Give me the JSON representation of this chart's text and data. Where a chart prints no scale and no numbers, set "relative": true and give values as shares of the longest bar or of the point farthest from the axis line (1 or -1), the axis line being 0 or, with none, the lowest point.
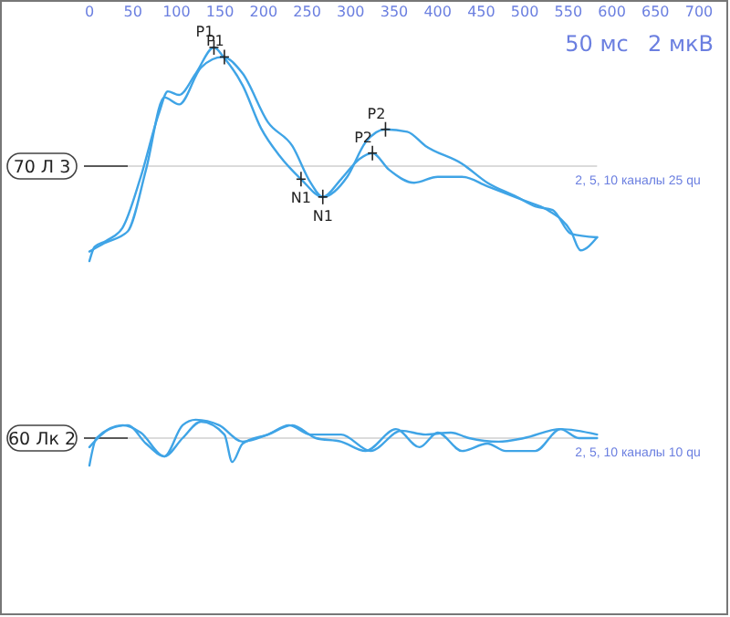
{
  "chart_data": [
    {
      "type": "line",
      "relative": true,
      "ylabel": "70 Л 3",
      "xlim": [
        0,
        700
      ],
      "xticks": [
        0,
        50,
        100,
        150,
        200,
        250,
        300,
        350,
        400,
        450,
        500,
        550,
        600,
        650,
        700
      ],
      "tick_labels": "x",
      "annotations": [
        "50 мс",
        "2 мкВ",
        "2, 5, 10 каналы 25 qu",
        {
          "text": "P1",
          "x": 143,
          "y": 1.0
        },
        {
          "text": "P1",
          "x": 155,
          "y": 0.92
        },
        {
          "text": "N1",
          "x": 243,
          "y": -0.11
        },
        {
          "text": "N1",
          "x": 268,
          "y": -0.26
        },
        {
          "text": "P2",
          "x": 325,
          "y": 0.11
        },
        {
          "text": "P2",
          "x": 340,
          "y": 0.31
        }
      ],
      "series": [
        {
          "color": "#3fa4e6",
          "x": [
            0,
            6,
            19,
            38,
            59,
            80,
            90,
            103,
            122,
            143,
            155,
            176,
            197,
            218,
            243,
            268,
            289,
            310,
            325,
            344,
            373,
            400,
            428,
            457,
            499,
            526,
            553,
            564,
            583
          ],
          "values": [
            -0.8,
            -0.68,
            -0.63,
            -0.52,
            -0.09,
            0.45,
            0.63,
            0.6,
            0.78,
            1.0,
            0.91,
            0.68,
            0.32,
            0.09,
            -0.11,
            -0.26,
            -0.11,
            0.06,
            0.11,
            -0.03,
            -0.14,
            -0.09,
            -0.09,
            -0.17,
            -0.29,
            -0.37,
            -0.55,
            -0.71,
            -0.6
          ]
        },
        {
          "color": "#3fa4e6",
          "x": [
            0,
            17,
            44,
            65,
            86,
            103,
            128,
            153,
            176,
            205,
            233,
            254,
            268,
            296,
            317,
            340,
            365,
            386,
            428,
            457,
            491,
            512,
            532,
            553,
            583
          ],
          "values": [
            -0.72,
            -0.65,
            -0.55,
            -0.03,
            0.58,
            0.52,
            0.83,
            0.92,
            0.78,
            0.37,
            0.17,
            -0.14,
            -0.26,
            -0.09,
            0.2,
            0.31,
            0.29,
            0.17,
            0.02,
            -0.14,
            -0.26,
            -0.34,
            -0.37,
            -0.57,
            -0.6
          ]
        }
      ]
    },
    {
      "type": "line",
      "relative": true,
      "ylabel": "60 Лк 2",
      "xlim": [
        0,
        700
      ],
      "tick_labels": false,
      "annotations": [
        "2, 5, 10 каналы 10 qu"
      ],
      "series": [
        {
          "color": "#3fa4e6",
          "x": [
            0,
            8,
            38,
            59,
            86,
            107,
            128,
            155,
            164,
            176,
            205,
            233,
            260,
            289,
            317,
            352,
            379,
            400,
            428,
            457,
            478,
            512,
            541,
            562,
            583
          ],
          "values": [
            -1.0,
            0,
            0.47,
            0.2,
            -0.67,
            0,
            0.6,
            0.13,
            -0.87,
            -0.2,
            0.13,
            0.47,
            0,
            -0.13,
            -0.47,
            0.33,
            -0.33,
            0.2,
            -0.47,
            -0.2,
            -0.47,
            -0.47,
            0.33,
            0,
            0
          ]
        },
        {
          "color": "#3fa4e6",
          "x": [
            0,
            23,
            44,
            65,
            86,
            107,
            122,
            149,
            176,
            205,
            229,
            254,
            289,
            323,
            358,
            386,
            415,
            436,
            470,
            499,
            541,
            583
          ],
          "values": [
            -0.33,
            0.33,
            0.47,
            -0.2,
            -0.67,
            0.47,
            0.67,
            0.47,
            -0.13,
            0.13,
            0.47,
            0.13,
            0.13,
            -0.47,
            0.27,
            0.13,
            0.2,
            0,
            -0.13,
            0,
            0.33,
            0.13
          ]
        }
      ]
    }
  ]
}
